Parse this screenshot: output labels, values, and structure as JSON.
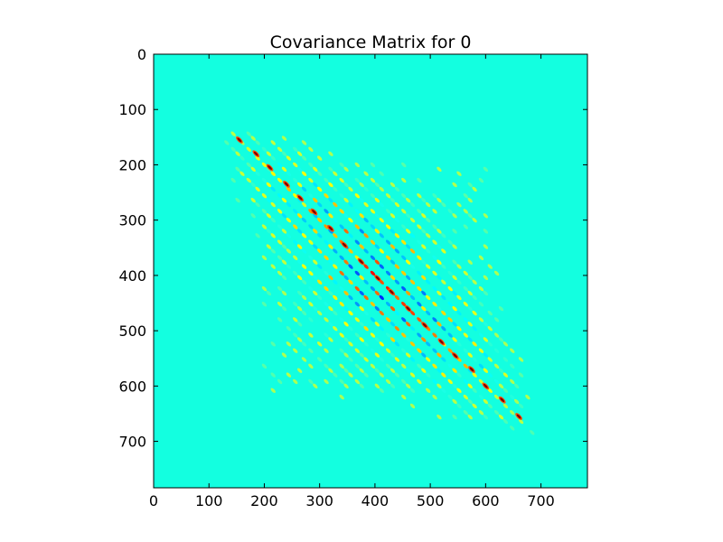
{
  "chart_data": {
    "type": "heatmap",
    "title": "Covariance Matrix for 0",
    "xlabel": "",
    "ylabel": "",
    "size": 784,
    "xlim": [
      0,
      784
    ],
    "ylim": [
      784,
      0
    ],
    "x_ticks": [
      0,
      100,
      200,
      300,
      400,
      500,
      600,
      700
    ],
    "y_ticks": [
      0,
      100,
      200,
      300,
      400,
      500,
      600,
      700
    ],
    "grid": false,
    "colormap": "jet",
    "background_color": "#13ffe0",
    "block_period": 28,
    "active_range": [
      95,
      725
    ],
    "strong_positive_diagonal_blocks": [
      {
        "row": 155,
        "col": 155
      },
      {
        "row": 180,
        "col": 185
      },
      {
        "row": 205,
        "col": 210
      },
      {
        "row": 235,
        "col": 240
      },
      {
        "row": 260,
        "col": 265
      },
      {
        "row": 285,
        "col": 290
      },
      {
        "row": 315,
        "col": 320
      },
      {
        "row": 345,
        "col": 345
      },
      {
        "row": 375,
        "col": 375
      },
      {
        "row": 405,
        "col": 405
      },
      {
        "row": 430,
        "col": 430
      },
      {
        "row": 460,
        "col": 460
      },
      {
        "row": 490,
        "col": 490
      },
      {
        "row": 520,
        "col": 520
      },
      {
        "row": 545,
        "col": 545
      },
      {
        "row": 570,
        "col": 575
      },
      {
        "row": 600,
        "col": 600
      },
      {
        "row": 625,
        "col": 630
      },
      {
        "row": 655,
        "col": 660
      }
    ]
  }
}
